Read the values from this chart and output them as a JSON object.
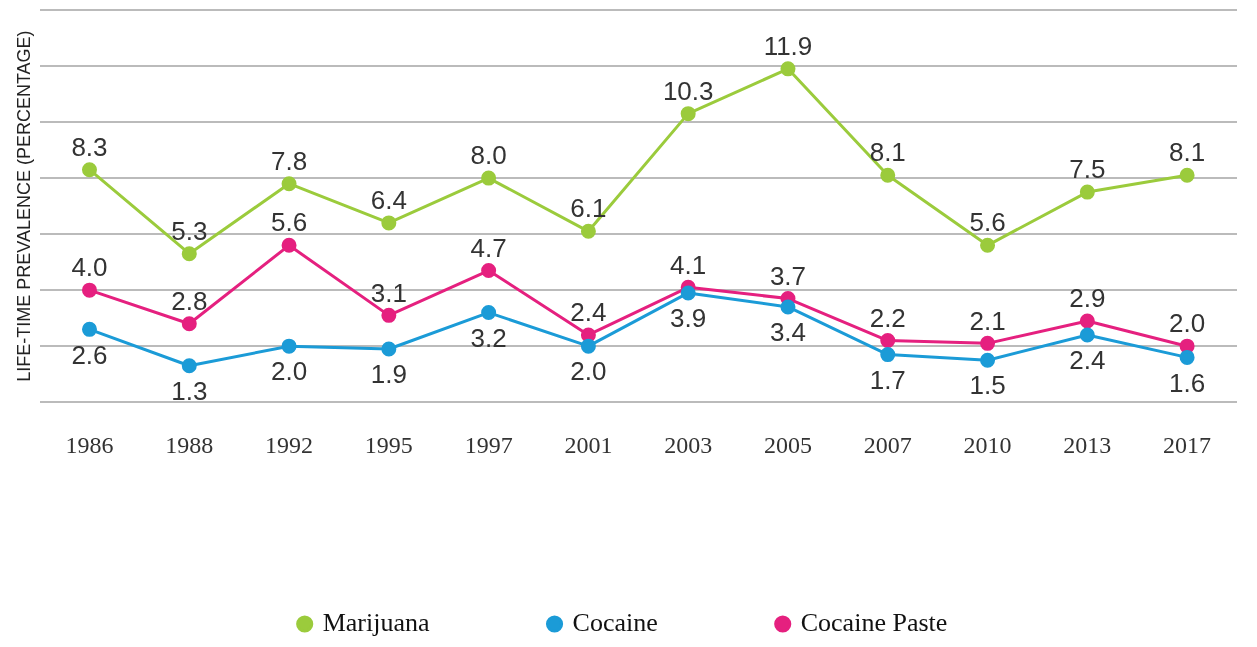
{
  "chart_data": {
    "type": "line",
    "ylabel": "LIFE-TIME PREVALENCE (PERCENTAGE)",
    "categories": [
      "1986",
      "1988",
      "1992",
      "1995",
      "1997",
      "2001",
      "2003",
      "2005",
      "2007",
      "2010",
      "2013",
      "2017"
    ],
    "series": [
      {
        "name": "Marijuana",
        "color": "#9bcb3c",
        "values": [
          8.3,
          5.3,
          7.8,
          6.4,
          8.0,
          6.1,
          10.3,
          11.9,
          8.1,
          5.6,
          7.5,
          8.1
        ],
        "value_labels": [
          "8.3",
          "5.3",
          "7.8",
          "6.4",
          "8.0",
          "6.1",
          "10.3",
          "11.9",
          "8.1",
          "5.6",
          "7.5",
          "8.1"
        ]
      },
      {
        "name": "Cocaine",
        "color": "#1b9bd7",
        "values": [
          2.6,
          1.3,
          2.0,
          1.9,
          3.2,
          2.0,
          3.9,
          3.4,
          1.7,
          1.5,
          2.4,
          1.6
        ],
        "value_labels": [
          "2.6",
          "1.3",
          "2.0",
          "1.9",
          "3.2",
          "2.0",
          "3.9",
          "3.4",
          "1.7",
          "1.5",
          "2.4",
          "1.6"
        ]
      },
      {
        "name": "Cocaine Paste",
        "color": "#e5207f",
        "values": [
          4.0,
          2.8,
          5.6,
          3.1,
          4.7,
          2.4,
          4.1,
          3.7,
          2.2,
          2.1,
          2.9,
          2.0
        ],
        "value_labels": [
          "4.0",
          "2.8",
          "5.6",
          "3.1",
          "4.7",
          "2.4",
          "4.1",
          "3.7",
          "2.2",
          "2.1",
          "2.9",
          "2.0"
        ]
      }
    ],
    "ylim": [
      0,
      14
    ],
    "yticks": [
      0,
      2,
      4,
      6,
      8,
      10,
      12,
      14
    ],
    "tick_labels": "x",
    "grid": "y",
    "legend": "bottom",
    "marker": "circle",
    "line_style": "solid"
  }
}
